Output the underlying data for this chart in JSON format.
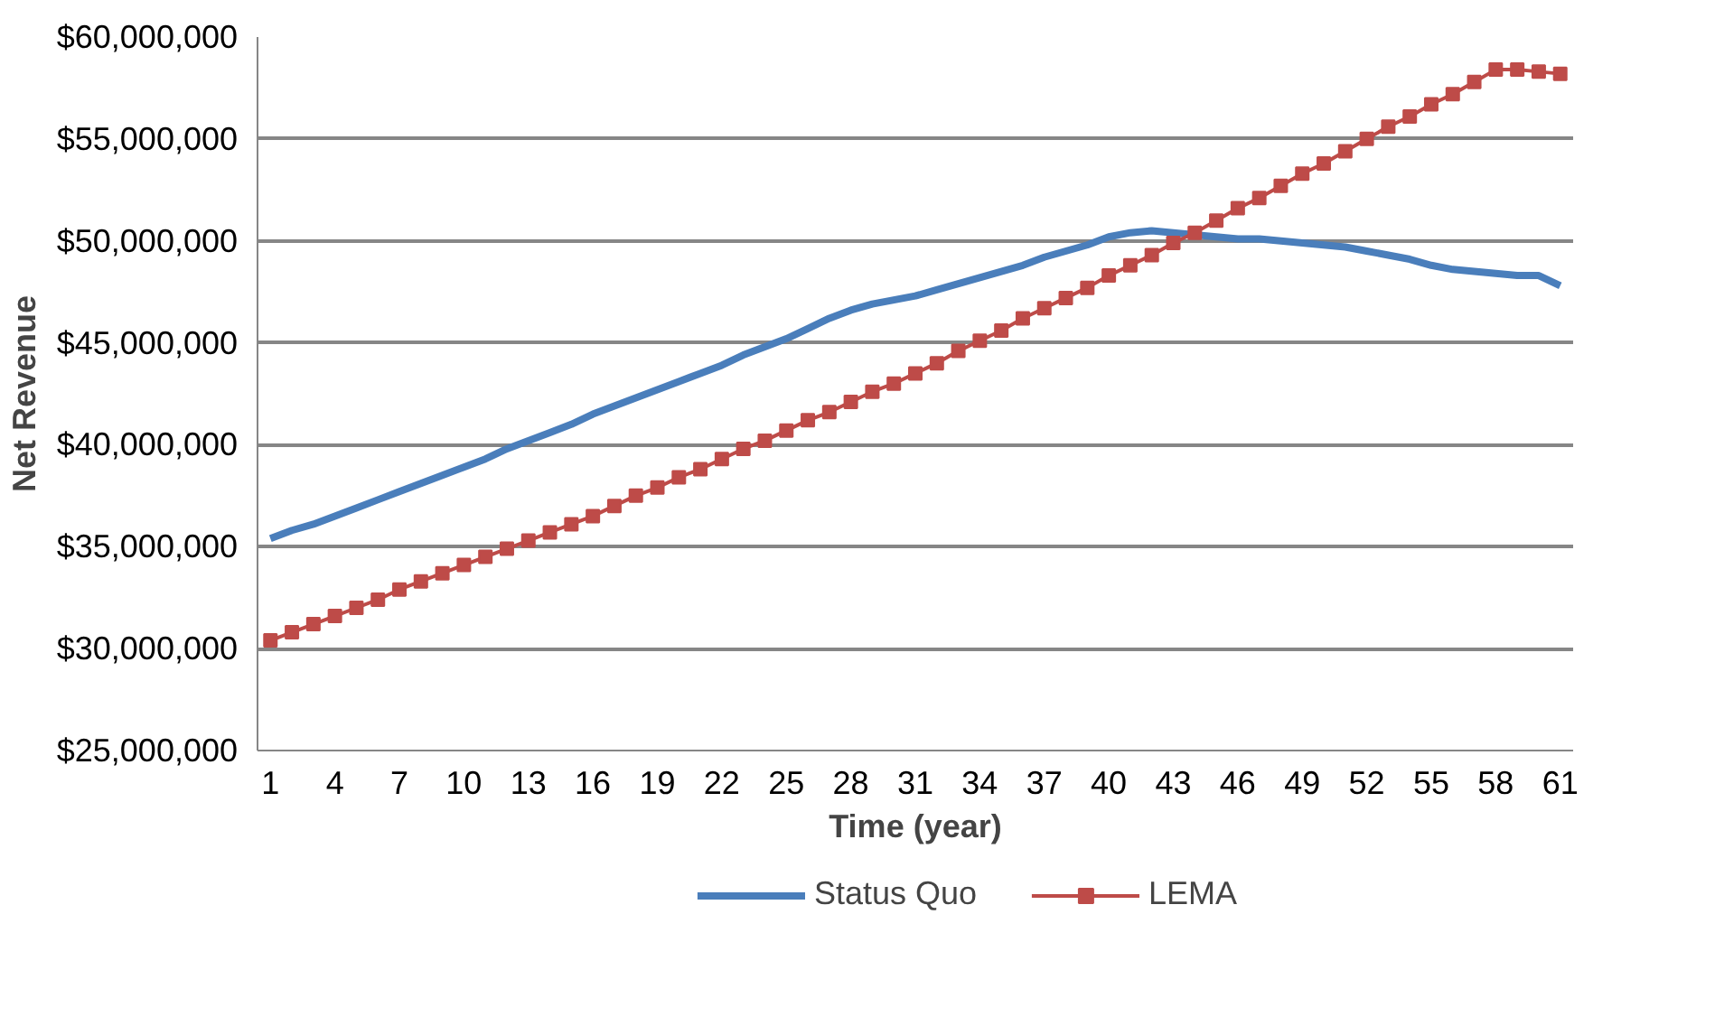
{
  "chart_data": {
    "type": "line",
    "xlabel": "Time (year)",
    "ylabel": "Net Revenue",
    "categories": [
      "1",
      null,
      null,
      "4",
      null,
      null,
      "7",
      null,
      null,
      "10",
      null,
      null,
      "13",
      null,
      null,
      "16",
      null,
      null,
      "19",
      null,
      null,
      "22",
      null,
      null,
      "25",
      null,
      null,
      "28",
      null,
      null,
      "31",
      null,
      null,
      "34",
      null,
      null,
      "37",
      null,
      null,
      "40",
      null,
      null,
      "43",
      null,
      null,
      "46",
      null,
      null,
      "49",
      null,
      null,
      "52",
      null,
      null,
      "55",
      null,
      null,
      "58",
      null,
      null,
      "61"
    ],
    "ylim": [
      25000000,
      60000000
    ],
    "yticks": [
      {
        "value": 25000000,
        "label": "$25,000,000"
      },
      {
        "value": 30000000,
        "label": "$30,000,000"
      },
      {
        "value": 35000000,
        "label": "$35,000,000"
      },
      {
        "value": 40000000,
        "label": "$40,000,000"
      },
      {
        "value": 45000000,
        "label": "$45,000,000"
      },
      {
        "value": 50000000,
        "label": "$50,000,000"
      },
      {
        "value": 55000000,
        "label": "$55,000,000"
      },
      {
        "value": 60000000,
        "label": "$60,000,000"
      }
    ],
    "grid": "y",
    "legend": "bottom",
    "series": [
      {
        "name": "Status Quo",
        "color": "#4a7ebb",
        "marker": "none",
        "values": [
          35400000,
          35800000,
          36100000,
          36500000,
          36900000,
          37300000,
          37700000,
          38100000,
          38500000,
          38900000,
          39300000,
          39800000,
          40200000,
          40600000,
          41000000,
          41500000,
          41900000,
          42300000,
          42700000,
          43100000,
          43500000,
          43900000,
          44400000,
          44800000,
          45200000,
          45700000,
          46200000,
          46600000,
          46900000,
          47100000,
          47300000,
          47600000,
          47900000,
          48200000,
          48500000,
          48800000,
          49200000,
          49500000,
          49800000,
          50200000,
          50400000,
          50500000,
          50400000,
          50300000,
          50200000,
          50100000,
          50100000,
          50000000,
          49900000,
          49800000,
          49700000,
          49500000,
          49300000,
          49100000,
          48800000,
          48600000,
          48500000,
          48400000,
          48300000,
          48300000,
          47800000
        ]
      },
      {
        "name": "LEMA",
        "color": "#be4b48",
        "marker": "square",
        "values": [
          30400000,
          30800000,
          31200000,
          31600000,
          32000000,
          32400000,
          32900000,
          33300000,
          33700000,
          34100000,
          34500000,
          34900000,
          35300000,
          35700000,
          36100000,
          36500000,
          37000000,
          37500000,
          37900000,
          38400000,
          38800000,
          39300000,
          39800000,
          40200000,
          40700000,
          41200000,
          41600000,
          42100000,
          42600000,
          43000000,
          43500000,
          44000000,
          44600000,
          45100000,
          45600000,
          46200000,
          46700000,
          47200000,
          47700000,
          48300000,
          48800000,
          49300000,
          49900000,
          50400000,
          51000000,
          51600000,
          52100000,
          52700000,
          53300000,
          53800000,
          54400000,
          55000000,
          55600000,
          56100000,
          56700000,
          57200000,
          57800000,
          58400000,
          58400000,
          58300000,
          58200000
        ]
      }
    ]
  }
}
